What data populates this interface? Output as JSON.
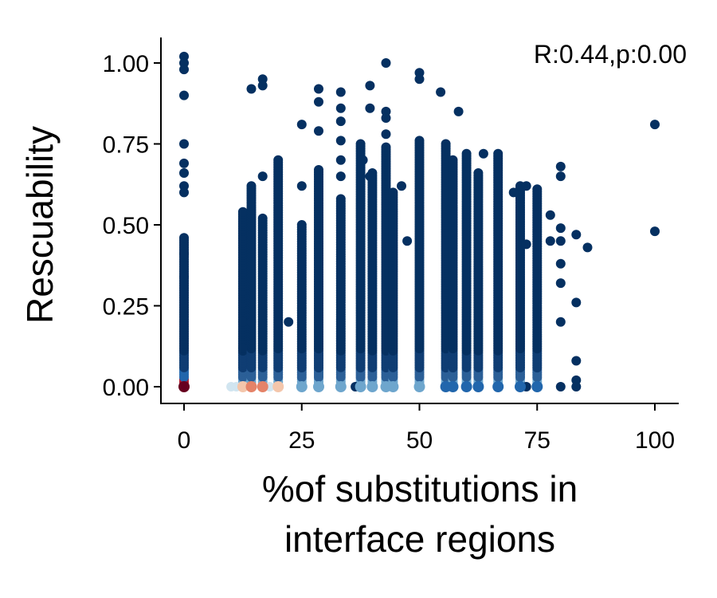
{
  "chart_data": {
    "type": "scatter",
    "title": "",
    "xlabel_lines": [
      "%of substitutions in",
      "interface regions"
    ],
    "ylabel": "Rescuability",
    "annotation": "R:0.44,p:0.00",
    "xlim": [
      -5,
      105
    ],
    "ylim": [
      -0.05,
      1.08
    ],
    "xticks": [
      0,
      25,
      50,
      75,
      100
    ],
    "yticks": [
      0.0,
      0.25,
      0.5,
      0.75,
      1.0
    ],
    "xtick_labels": [
      "0",
      "25",
      "50",
      "75",
      "100"
    ],
    "ytick_labels": [
      "0.00",
      "0.25",
      "0.50",
      "0.75",
      "1.00"
    ],
    "grid": false,
    "legend": "none",
    "colors": {
      "high_density": "#67001f",
      "dense_red": "#b2182b",
      "mid_red": "#e58368",
      "light_red": "#f4c6ab",
      "light_blue": "#d1e5f0",
      "mid_blue": "#6ea6cd",
      "blue": "#2166ac",
      "low_density": "#053061"
    },
    "columns": [
      {
        "x": 0,
        "ymax": 0.46,
        "base_color": "#67001f"
      },
      {
        "x": 12.5,
        "ymax": 0.54,
        "base_color": "#f4c6ab"
      },
      {
        "x": 14.3,
        "ymax": 0.62,
        "base_color": "#e58368"
      },
      {
        "x": 16.7,
        "ymax": 0.52,
        "base_color": "#e58368"
      },
      {
        "x": 20,
        "ymax": 0.7,
        "base_color": "#f4c6ab"
      },
      {
        "x": 25,
        "ymax": 0.5,
        "base_color": "#6ea6cd"
      },
      {
        "x": 28.6,
        "ymax": 0.67,
        "base_color": "#6ea6cd"
      },
      {
        "x": 33.3,
        "ymax": 0.58,
        "base_color": "#6ea6cd"
      },
      {
        "x": 37.5,
        "ymax": 0.75,
        "base_color": "#6ea6cd"
      },
      {
        "x": 40,
        "ymax": 0.66,
        "base_color": "#6ea6cd"
      },
      {
        "x": 42.9,
        "ymax": 0.74,
        "base_color": "#6ea6cd"
      },
      {
        "x": 44.4,
        "ymax": 0.6,
        "base_color": "#6ea6cd"
      },
      {
        "x": 50,
        "ymax": 0.76,
        "base_color": "#6ea6cd"
      },
      {
        "x": 55.6,
        "ymax": 0.75,
        "base_color": "#2166ac"
      },
      {
        "x": 57.1,
        "ymax": 0.7,
        "base_color": "#2166ac"
      },
      {
        "x": 60,
        "ymax": 0.72,
        "base_color": "#2166ac"
      },
      {
        "x": 62.5,
        "ymax": 0.66,
        "base_color": "#2166ac"
      },
      {
        "x": 66.7,
        "ymax": 0.72,
        "base_color": "#2166ac"
      },
      {
        "x": 71.4,
        "ymax": 0.62,
        "base_color": "#2166ac"
      },
      {
        "x": 75,
        "ymax": 0.61,
        "base_color": "#2166ac"
      }
    ],
    "points": [
      {
        "x": 0,
        "y": 1.02
      },
      {
        "x": 0,
        "y": 1.0
      },
      {
        "x": 0,
        "y": 0.98
      },
      {
        "x": 0,
        "y": 0.9
      },
      {
        "x": 0,
        "y": 0.75
      },
      {
        "x": 0,
        "y": 0.69
      },
      {
        "x": 0,
        "y": 0.66
      },
      {
        "x": 0,
        "y": 0.62
      },
      {
        "x": 0,
        "y": 0.6
      },
      {
        "x": 0,
        "y": 0.41
      },
      {
        "x": 0,
        "y": 0.34
      },
      {
        "x": 10,
        "y": 0.0
      },
      {
        "x": 11.1,
        "y": 0.0
      },
      {
        "x": 12.5,
        "y": 0.2
      },
      {
        "x": 12.5,
        "y": 0.12
      },
      {
        "x": 14.3,
        "y": 0.92
      },
      {
        "x": 14.3,
        "y": 0.2
      },
      {
        "x": 16.7,
        "y": 0.95
      },
      {
        "x": 16.7,
        "y": 0.93
      },
      {
        "x": 16.7,
        "y": 0.65
      },
      {
        "x": 18.2,
        "y": 0.0
      },
      {
        "x": 22.2,
        "y": 0.2
      },
      {
        "x": 25,
        "y": 0.81
      },
      {
        "x": 25,
        "y": 0.62
      },
      {
        "x": 28.6,
        "y": 0.92
      },
      {
        "x": 28.6,
        "y": 0.88
      },
      {
        "x": 28.6,
        "y": 0.79
      },
      {
        "x": 33.3,
        "y": 0.91
      },
      {
        "x": 33.3,
        "y": 0.86
      },
      {
        "x": 33.3,
        "y": 0.82
      },
      {
        "x": 33.3,
        "y": 0.76
      },
      {
        "x": 33.3,
        "y": 0.7
      },
      {
        "x": 33.3,
        "y": 0.65
      },
      {
        "x": 36.4,
        "y": 0.0
      },
      {
        "x": 39.5,
        "y": 0.93
      },
      {
        "x": 39.5,
        "y": 0.86
      },
      {
        "x": 38,
        "y": 0.7
      },
      {
        "x": 39.5,
        "y": 0.65
      },
      {
        "x": 42.9,
        "y": 1.0
      },
      {
        "x": 42.9,
        "y": 0.85
      },
      {
        "x": 42.9,
        "y": 0.83
      },
      {
        "x": 42.9,
        "y": 0.78
      },
      {
        "x": 46.2,
        "y": 0.62
      },
      {
        "x": 47.4,
        "y": 0.45
      },
      {
        "x": 50,
        "y": 0.97
      },
      {
        "x": 50,
        "y": 0.95
      },
      {
        "x": 54.5,
        "y": 0.91
      },
      {
        "x": 58.3,
        "y": 0.85
      },
      {
        "x": 63.6,
        "y": 0.72
      },
      {
        "x": 70,
        "y": 0.6
      },
      {
        "x": 72.7,
        "y": 0.62
      },
      {
        "x": 72.7,
        "y": 0.44
      },
      {
        "x": 72.7,
        "y": 0.0
      },
      {
        "x": 77.8,
        "y": 0.53
      },
      {
        "x": 77.8,
        "y": 0.45
      },
      {
        "x": 80,
        "y": 0.68
      },
      {
        "x": 80,
        "y": 0.65
      },
      {
        "x": 80,
        "y": 0.49
      },
      {
        "x": 80,
        "y": 0.45
      },
      {
        "x": 80,
        "y": 0.38
      },
      {
        "x": 80,
        "y": 0.32
      },
      {
        "x": 80,
        "y": 0.2
      },
      {
        "x": 80,
        "y": 0.0
      },
      {
        "x": 83.3,
        "y": 0.47
      },
      {
        "x": 83.3,
        "y": 0.26
      },
      {
        "x": 83.3,
        "y": 0.08
      },
      {
        "x": 83.3,
        "y": 0.02
      },
      {
        "x": 83.3,
        "y": 0.0
      },
      {
        "x": 85.7,
        "y": 0.43
      },
      {
        "x": 100,
        "y": 0.81
      },
      {
        "x": 100,
        "y": 0.48
      }
    ]
  }
}
